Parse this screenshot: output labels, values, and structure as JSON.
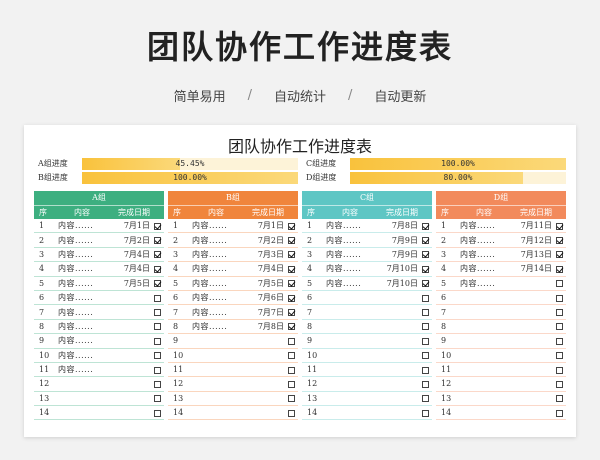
{
  "hero_title": "团队协作工作进度表",
  "tagline": [
    "简单易用",
    "/",
    "自动统计",
    "/",
    "自动更新"
  ],
  "sheet": {
    "title": "团队协作工作进度表",
    "progress": [
      {
        "label": "A组进度",
        "value": "45.45%",
        "fraction": 0.4545
      },
      {
        "label": "B组进度",
        "value": "100.00%",
        "fraction": 1.0
      },
      {
        "label": "C组进度",
        "value": "100.00%",
        "fraction": 1.0
      },
      {
        "label": "D组进度",
        "value": "80.00%",
        "fraction": 0.8
      }
    ],
    "columns": {
      "no": "序",
      "content": "内容",
      "date": "完成日期"
    },
    "groups": [
      {
        "name": "A组",
        "color": "#3daf80",
        "line": "#3daf80",
        "rows": [
          {
            "no": "1",
            "content": "内容......",
            "date": "7月1日",
            "done": true
          },
          {
            "no": "2",
            "content": "内容......",
            "date": "7月2日",
            "done": true
          },
          {
            "no": "3",
            "content": "内容......",
            "date": "7月4日",
            "done": true
          },
          {
            "no": "4",
            "content": "内容......",
            "date": "7月4日",
            "done": true
          },
          {
            "no": "5",
            "content": "内容......",
            "date": "7月5日",
            "done": true
          },
          {
            "no": "6",
            "content": "内容......",
            "date": "",
            "done": false
          },
          {
            "no": "7",
            "content": "内容......",
            "date": "",
            "done": false
          },
          {
            "no": "8",
            "content": "内容......",
            "date": "",
            "done": false
          },
          {
            "no": "9",
            "content": "内容......",
            "date": "",
            "done": false
          },
          {
            "no": "10",
            "content": "内容......",
            "date": "",
            "done": false
          },
          {
            "no": "11",
            "content": "内容......",
            "date": "",
            "done": false
          },
          {
            "no": "12",
            "content": "",
            "date": "",
            "done": false
          },
          {
            "no": "13",
            "content": "",
            "date": "",
            "done": false
          },
          {
            "no": "14",
            "content": "",
            "date": "",
            "done": false
          }
        ]
      },
      {
        "name": "B组",
        "color": "#f0853c",
        "line": "#f0853c",
        "rows": [
          {
            "no": "1",
            "content": "内容......",
            "date": "7月1日",
            "done": true
          },
          {
            "no": "2",
            "content": "内容......",
            "date": "7月2日",
            "done": true
          },
          {
            "no": "3",
            "content": "内容......",
            "date": "7月3日",
            "done": true
          },
          {
            "no": "4",
            "content": "内容......",
            "date": "7月4日",
            "done": true
          },
          {
            "no": "5",
            "content": "内容......",
            "date": "7月5日",
            "done": true
          },
          {
            "no": "6",
            "content": "内容......",
            "date": "7月6日",
            "done": true
          },
          {
            "no": "7",
            "content": "内容......",
            "date": "7月7日",
            "done": true
          },
          {
            "no": "8",
            "content": "内容......",
            "date": "7月8日",
            "done": true
          },
          {
            "no": "9",
            "content": "",
            "date": "",
            "done": false
          },
          {
            "no": "10",
            "content": "",
            "date": "",
            "done": false
          },
          {
            "no": "11",
            "content": "",
            "date": "",
            "done": false
          },
          {
            "no": "12",
            "content": "",
            "date": "",
            "done": false
          },
          {
            "no": "13",
            "content": "",
            "date": "",
            "done": false
          },
          {
            "no": "14",
            "content": "",
            "date": "",
            "done": false
          }
        ]
      },
      {
        "name": "C组",
        "color": "#5ec6c4",
        "line": "#5ec6c4",
        "rows": [
          {
            "no": "1",
            "content": "内容......",
            "date": "7月8日",
            "done": true
          },
          {
            "no": "2",
            "content": "内容......",
            "date": "7月9日",
            "done": true
          },
          {
            "no": "3",
            "content": "内容......",
            "date": "7月9日",
            "done": true
          },
          {
            "no": "4",
            "content": "内容......",
            "date": "7月10日",
            "done": true
          },
          {
            "no": "5",
            "content": "内容......",
            "date": "7月10日",
            "done": true
          },
          {
            "no": "6",
            "content": "",
            "date": "",
            "done": false
          },
          {
            "no": "7",
            "content": "",
            "date": "",
            "done": false
          },
          {
            "no": "8",
            "content": "",
            "date": "",
            "done": false
          },
          {
            "no": "9",
            "content": "",
            "date": "",
            "done": false
          },
          {
            "no": "10",
            "content": "",
            "date": "",
            "done": false
          },
          {
            "no": "11",
            "content": "",
            "date": "",
            "done": false
          },
          {
            "no": "12",
            "content": "",
            "date": "",
            "done": false
          },
          {
            "no": "13",
            "content": "",
            "date": "",
            "done": false
          },
          {
            "no": "14",
            "content": "",
            "date": "",
            "done": false
          }
        ]
      },
      {
        "name": "D组",
        "color": "#f28a5c",
        "line": "#f28a5c",
        "rows": [
          {
            "no": "1",
            "content": "内容......",
            "date": "7月11日",
            "done": true
          },
          {
            "no": "2",
            "content": "内容......",
            "date": "7月12日",
            "done": true
          },
          {
            "no": "3",
            "content": "内容......",
            "date": "7月13日",
            "done": true
          },
          {
            "no": "4",
            "content": "内容......",
            "date": "7月14日",
            "done": true
          },
          {
            "no": "5",
            "content": "内容......",
            "date": "",
            "done": false
          },
          {
            "no": "6",
            "content": "",
            "date": "",
            "done": false
          },
          {
            "no": "7",
            "content": "",
            "date": "",
            "done": false
          },
          {
            "no": "8",
            "content": "",
            "date": "",
            "done": false
          },
          {
            "no": "9",
            "content": "",
            "date": "",
            "done": false
          },
          {
            "no": "10",
            "content": "",
            "date": "",
            "done": false
          },
          {
            "no": "11",
            "content": "",
            "date": "",
            "done": false
          },
          {
            "no": "12",
            "content": "",
            "date": "",
            "done": false
          },
          {
            "no": "13",
            "content": "",
            "date": "",
            "done": false
          },
          {
            "no": "14",
            "content": "",
            "date": "",
            "done": false
          }
        ]
      }
    ]
  }
}
